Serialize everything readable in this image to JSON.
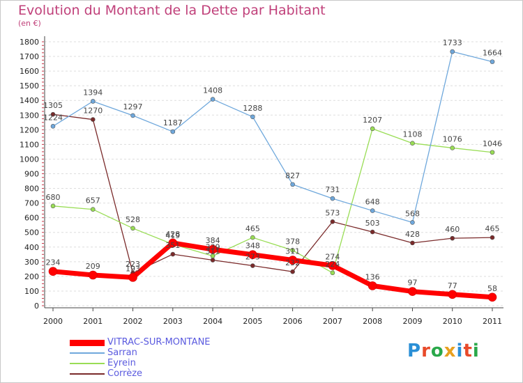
{
  "header": {
    "title": "Evolution du Montant de la Dette par Habitant",
    "unit": "(en €)"
  },
  "logo": {
    "text": "Proxiti",
    "letter_colors": [
      "#2a8fd6",
      "#e84a2a",
      "#2aa84a",
      "#e8a020",
      "#2a8fd6",
      "#e84a2a",
      "#2aa84a"
    ]
  },
  "chart_data": {
    "type": "line",
    "title": "Evolution du Montant de la Dette par Habitant",
    "ylabel": "(en €)",
    "xlabel": "",
    "x": [
      "2000",
      "2001",
      "2002",
      "2003",
      "2004",
      "2005",
      "2006",
      "2007",
      "2008",
      "2009",
      "2010",
      "2011"
    ],
    "ylim": [
      0,
      1800
    ],
    "yticks": [
      0,
      100,
      200,
      300,
      400,
      500,
      600,
      700,
      800,
      900,
      1000,
      1100,
      1200,
      1300,
      1400,
      1500,
      1600,
      1700,
      1800
    ],
    "grid": "horizontal-dashed",
    "legend": "bottom-left",
    "series": [
      {
        "name": "VITRAC-SUR-MONTANE",
        "color": "#ff0000",
        "values": [
          234,
          209,
          193,
          428,
          384,
          348,
          311,
          274,
          136,
          97,
          77,
          58
        ],
        "labels": [
          "234",
          "209",
          "193",
          "428",
          "384",
          "348",
          "311",
          "274",
          "136",
          "97",
          "77",
          "58"
        ]
      },
      {
        "name": "Sarran",
        "color": "#6fa8dc",
        "values": [
          1224,
          1394,
          1297,
          1187,
          1408,
          1288,
          827,
          731,
          648,
          568,
          1733,
          1664
        ],
        "labels": [
          "1224",
          "1394",
          "1297",
          "1187",
          "1408",
          "1288",
          "827",
          "731",
          "648",
          "568",
          "1733",
          "1664"
        ]
      },
      {
        "name": "Eyrein",
        "color": "#99dd55",
        "values": [
          680,
          657,
          528,
          419,
          339,
          465,
          378,
          224,
          1207,
          1108,
          1076,
          1046
        ],
        "labels": [
          "680",
          "657",
          "528",
          "419",
          "339",
          "465",
          "378",
          "224",
          "1207",
          "1108",
          "1076",
          "1046"
        ]
      },
      {
        "name": "Corrèze",
        "color": "#7a2a2a",
        "values": [
          1305,
          1270,
          223,
          351,
          311,
          273,
          232,
          573,
          503,
          428,
          460,
          465
        ],
        "labels": [
          "1305",
          "1270",
          "223",
          "351",
          "311",
          "273",
          "232",
          "573",
          "503",
          "428",
          "460",
          "465"
        ]
      }
    ]
  }
}
